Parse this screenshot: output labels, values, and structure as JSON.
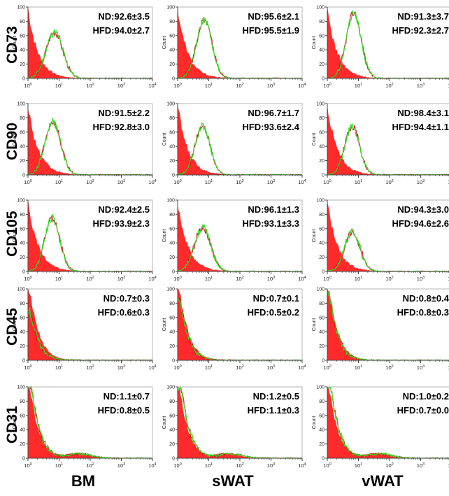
{
  "figure": {
    "column_labels": [
      "BM",
      "sWAT",
      "vWAT"
    ],
    "row_labels": [
      "CD73",
      "CD90",
      "CD105",
      "CD45",
      "CD31"
    ],
    "y_axis_label": "Count",
    "x_ticks": [
      "10^0",
      "10^1",
      "10^2",
      "10^3",
      "10^4"
    ],
    "y_ticks": [
      "0",
      "20",
      "40",
      "60",
      "80",
      "100"
    ],
    "colors": {
      "control": "#ff2a2a",
      "nd": "#c21c1c",
      "hfd": "#33dd22"
    }
  },
  "chart_data": [
    {
      "type": "histogram",
      "marker": "CD73",
      "tissue": "BM",
      "nd_label": "ND:92.6±3.5",
      "hfd_label": "HFD:94.0±2.7",
      "peak_log10": 0.85,
      "peak_count": 65,
      "spread": 0.27,
      "control_peak_count": 100,
      "positive": true,
      "xlim": [
        1,
        10000
      ],
      "ylim": [
        0,
        100
      ],
      "xscale": "log"
    },
    {
      "type": "histogram",
      "marker": "CD73",
      "tissue": "sWAT",
      "nd_label": "ND:95.6±2.1",
      "hfd_label": "HFD:95.5±1.9",
      "peak_log10": 0.85,
      "peak_count": 82,
      "spread": 0.25,
      "control_peak_count": 100,
      "positive": true,
      "xlim": [
        1,
        10000
      ],
      "ylim": [
        0,
        100
      ],
      "xscale": "log"
    },
    {
      "type": "histogram",
      "marker": "CD73",
      "tissue": "vWAT",
      "nd_label": "ND:91.3±3.7",
      "hfd_label": "HFD:92.3±2.7",
      "peak_log10": 0.85,
      "peak_count": 92,
      "spread": 0.24,
      "control_peak_count": 100,
      "positive": true,
      "xlim": [
        1,
        10000
      ],
      "ylim": [
        0,
        100
      ],
      "xscale": "log"
    },
    {
      "type": "histogram",
      "marker": "CD90",
      "tissue": "BM",
      "nd_label": "ND:91.5±2.2",
      "hfd_label": "HFD:92.8±3.0",
      "peak_log10": 0.8,
      "peak_count": 75,
      "spread": 0.25,
      "control_peak_count": 100,
      "positive": true,
      "xlim": [
        1,
        10000
      ],
      "ylim": [
        0,
        100
      ],
      "xscale": "log"
    },
    {
      "type": "histogram",
      "marker": "CD90",
      "tissue": "sWAT",
      "nd_label": "ND:96.7±1.7",
      "hfd_label": "HFD:93.6±2.4",
      "peak_log10": 0.8,
      "peak_count": 68,
      "spread": 0.24,
      "control_peak_count": 100,
      "positive": true,
      "xlim": [
        1,
        10000
      ],
      "ylim": [
        0,
        100
      ],
      "xscale": "log"
    },
    {
      "type": "histogram",
      "marker": "CD90",
      "tissue": "vWAT",
      "nd_label": "ND:98.4±3.1",
      "hfd_label": "HFD:94.4±1.1",
      "peak_log10": 0.8,
      "peak_count": 68,
      "spread": 0.24,
      "control_peak_count": 100,
      "positive": true,
      "xlim": [
        1,
        10000
      ],
      "ylim": [
        0,
        100
      ],
      "xscale": "log"
    },
    {
      "type": "histogram",
      "marker": "CD105",
      "tissue": "BM",
      "nd_label": "ND:92.4±2.5",
      "hfd_label": "HFD:93.9±2.3",
      "peak_log10": 0.78,
      "peak_count": 75,
      "spread": 0.24,
      "control_peak_count": 100,
      "positive": true,
      "xlim": [
        1,
        10000
      ],
      "ylim": [
        0,
        100
      ],
      "xscale": "log"
    },
    {
      "type": "histogram",
      "marker": "CD105",
      "tissue": "sWAT",
      "nd_label": "ND:96.1±1.3",
      "hfd_label": "HFD:93.1±3.3",
      "peak_log10": 0.8,
      "peak_count": 62,
      "spread": 0.26,
      "control_peak_count": 100,
      "positive": true,
      "xlim": [
        1,
        10000
      ],
      "ylim": [
        0,
        100
      ],
      "xscale": "log"
    },
    {
      "type": "histogram",
      "marker": "CD105",
      "tissue": "vWAT",
      "nd_label": "ND:94.3±3.0",
      "hfd_label": "HFD:94.6±2.6",
      "peak_log10": 0.8,
      "peak_count": 55,
      "spread": 0.25,
      "control_peak_count": 100,
      "positive": true,
      "xlim": [
        1,
        10000
      ],
      "ylim": [
        0,
        100
      ],
      "xscale": "log"
    },
    {
      "type": "histogram",
      "marker": "CD45",
      "tissue": "BM",
      "nd_label": "ND:0.7±0.3",
      "hfd_label": "HFD:0.6±0.3",
      "peak_log10": 0.05,
      "peak_count": 70,
      "spread": 0.2,
      "control_peak_count": 100,
      "positive": false,
      "xlim": [
        1,
        10000
      ],
      "ylim": [
        0,
        100
      ],
      "xscale": "log"
    },
    {
      "type": "histogram",
      "marker": "CD45",
      "tissue": "sWAT",
      "nd_label": "ND:0.7±0.1",
      "hfd_label": "HFD:0.5±0.2",
      "peak_log10": 0.05,
      "peak_count": 88,
      "spread": 0.2,
      "control_peak_count": 100,
      "positive": false,
      "xlim": [
        1,
        10000
      ],
      "ylim": [
        0,
        100
      ],
      "xscale": "log"
    },
    {
      "type": "histogram",
      "marker": "CD45",
      "tissue": "vWAT",
      "nd_label": "ND:0.8±0.4",
      "hfd_label": "HFD:0.8±0.3",
      "peak_log10": 0.05,
      "peak_count": 95,
      "spread": 0.2,
      "control_peak_count": 100,
      "positive": false,
      "xlim": [
        1,
        10000
      ],
      "ylim": [
        0,
        100
      ],
      "xscale": "log"
    },
    {
      "type": "histogram",
      "marker": "CD31",
      "tissue": "BM",
      "nd_label": "ND:1.1±0.7",
      "hfd_label": "HFD:0.8±0.5",
      "peak_log10": 0.1,
      "peak_count": 100,
      "spread": 0.28,
      "control_peak_count": 100,
      "positive": false,
      "xlim": [
        1,
        10000
      ],
      "ylim": [
        0,
        100
      ],
      "xscale": "log"
    },
    {
      "type": "histogram",
      "marker": "CD31",
      "tissue": "sWAT",
      "nd_label": "ND:1.2±0.5",
      "hfd_label": "HFD:1.1±0.3",
      "peak_log10": 0.1,
      "peak_count": 100,
      "spread": 0.28,
      "control_peak_count": 100,
      "positive": false,
      "xlim": [
        1,
        10000
      ],
      "ylim": [
        0,
        100
      ],
      "xscale": "log"
    },
    {
      "type": "histogram",
      "marker": "CD31",
      "tissue": "vWAT",
      "nd_label": "ND:1.0±0.2",
      "hfd_label": "HFD:0.7±0.0",
      "peak_log10": 0.1,
      "peak_count": 100,
      "spread": 0.28,
      "control_peak_count": 100,
      "positive": false,
      "xlim": [
        1,
        10000
      ],
      "ylim": [
        0,
        100
      ],
      "xscale": "log"
    }
  ]
}
